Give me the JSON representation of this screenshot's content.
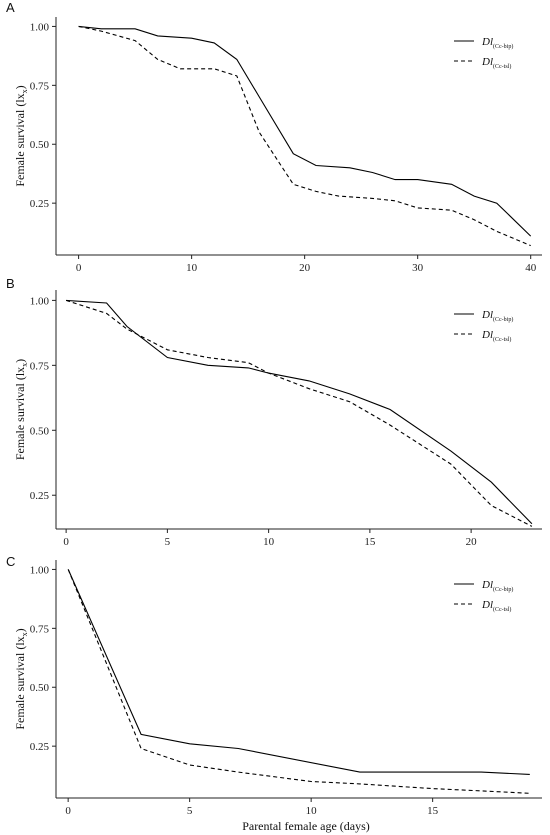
{
  "figure": {
    "x_axis_title": "Parental female age (days)"
  },
  "chart_data": [
    {
      "type": "line",
      "panel_label": "A",
      "ylabel": "Female survival (lx",
      "ylabel_sub": "x",
      "ylabel_close": ")",
      "xlim": [
        -2,
        41
      ],
      "ylim": [
        0.03,
        1.04
      ],
      "x_ticks": [
        0,
        10,
        20,
        30,
        40
      ],
      "y_ticks": [
        0.25,
        0.5,
        0.75,
        1.0
      ],
      "y_tick_labels": [
        "0.25",
        "0.50",
        "0.75",
        "1.00"
      ],
      "grid": false,
      "legend_position": "top-right",
      "series": [
        {
          "name": "Dl",
          "name_sub": "(Cc-bip)",
          "style": "solid",
          "x": [
            0,
            2,
            5,
            7,
            10,
            12,
            14,
            16,
            19,
            21,
            24,
            26,
            28,
            30,
            33,
            35,
            37,
            40
          ],
          "y": [
            1.0,
            0.99,
            0.99,
            0.96,
            0.95,
            0.93,
            0.86,
            0.7,
            0.46,
            0.41,
            0.4,
            0.38,
            0.35,
            0.35,
            0.33,
            0.28,
            0.25,
            0.11
          ]
        },
        {
          "name": "Dl",
          "name_sub": "(Cc-tsl)",
          "style": "dashed",
          "x": [
            0,
            2,
            5,
            7,
            9,
            12,
            14,
            16,
            19,
            21,
            23,
            26,
            28,
            30,
            33,
            35,
            37,
            40
          ],
          "y": [
            1.0,
            0.98,
            0.94,
            0.86,
            0.82,
            0.82,
            0.79,
            0.55,
            0.33,
            0.3,
            0.28,
            0.27,
            0.26,
            0.23,
            0.22,
            0.18,
            0.13,
            0.07
          ]
        }
      ]
    },
    {
      "type": "line",
      "panel_label": "B",
      "ylabel": "Female survival (lx",
      "ylabel_sub": "x",
      "ylabel_close": ")",
      "xlim": [
        -0.5,
        23.5
      ],
      "ylim": [
        0.12,
        1.04
      ],
      "x_ticks": [
        0,
        5,
        10,
        15,
        20
      ],
      "y_ticks": [
        0.25,
        0.5,
        0.75,
        1.0
      ],
      "y_tick_labels": [
        "0.25",
        "0.50",
        "0.75",
        "1.00"
      ],
      "grid": false,
      "legend_position": "top-right",
      "series": [
        {
          "name": "Dl",
          "name_sub": "(Cc-bip)",
          "style": "solid",
          "x": [
            0,
            2,
            3,
            5,
            7,
            9,
            10,
            12,
            14,
            16,
            19,
            21,
            23
          ],
          "y": [
            1.0,
            0.99,
            0.9,
            0.78,
            0.75,
            0.74,
            0.72,
            0.69,
            0.64,
            0.58,
            0.42,
            0.3,
            0.14
          ]
        },
        {
          "name": "Dl",
          "name_sub": "(Cc-tsl)",
          "style": "dashed",
          "x": [
            0,
            2,
            3,
            5,
            7,
            9,
            10,
            12,
            14,
            16,
            19,
            21,
            23
          ],
          "y": [
            1.0,
            0.95,
            0.89,
            0.81,
            0.78,
            0.76,
            0.72,
            0.66,
            0.61,
            0.52,
            0.37,
            0.21,
            0.13
          ]
        }
      ]
    },
    {
      "type": "line",
      "panel_label": "C",
      "ylabel": "Female survival (lx",
      "ylabel_sub": "x",
      "ylabel_close": ")",
      "xlim": [
        -0.5,
        19.5
      ],
      "ylim": [
        0.03,
        1.04
      ],
      "x_ticks": [
        0,
        5,
        10,
        15
      ],
      "y_ticks": [
        0.25,
        0.5,
        0.75,
        1.0
      ],
      "y_tick_labels": [
        "0.25",
        "0.50",
        "0.75",
        "1.00"
      ],
      "grid": false,
      "legend_position": "top-right",
      "series": [
        {
          "name": "Dl",
          "name_sub": "(Cc-bip)",
          "style": "solid",
          "x": [
            0,
            3,
            5,
            7,
            12,
            17,
            19
          ],
          "y": [
            1.0,
            0.3,
            0.26,
            0.24,
            0.14,
            0.14,
            0.13
          ]
        },
        {
          "name": "Dl",
          "name_sub": "(Cc-tsl)",
          "style": "dashed",
          "x": [
            0,
            3,
            5,
            7,
            10,
            12,
            15,
            17,
            19
          ],
          "y": [
            1.0,
            0.24,
            0.17,
            0.14,
            0.1,
            0.09,
            0.07,
            0.06,
            0.05
          ]
        }
      ]
    }
  ]
}
